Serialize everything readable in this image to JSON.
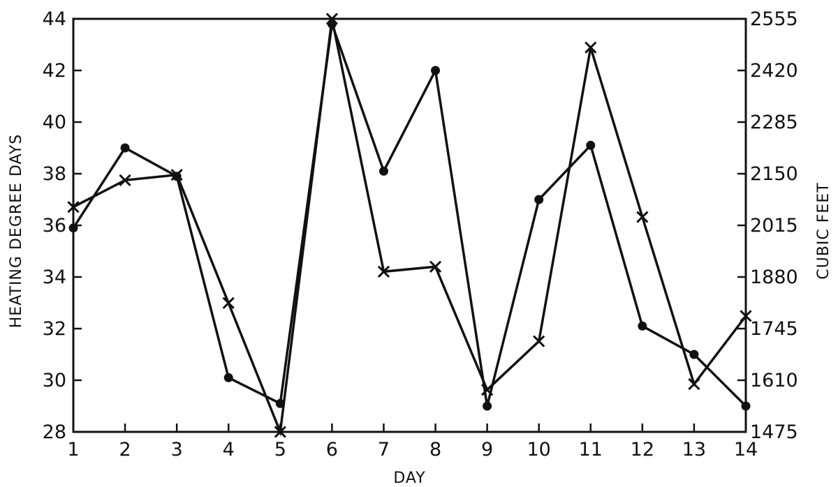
{
  "chart_data": {
    "type": "line",
    "title": "",
    "xlabel": "DAY",
    "ylabel_left": "HEATING DEGREE DAYS",
    "ylabel_right": "CUBIC FEET",
    "grid": false,
    "x": [
      1,
      2,
      3,
      4,
      5,
      6,
      7,
      8,
      9,
      10,
      11,
      12,
      13,
      14
    ],
    "x_ticks": [
      "1",
      "2",
      "3",
      "4",
      "5",
      "6",
      "7",
      "8",
      "9",
      "10",
      "11",
      "12",
      "13",
      "14"
    ],
    "left_axis": {
      "range": [
        28,
        44
      ],
      "ticks": [
        "28",
        "30",
        "32",
        "34",
        "36",
        "38",
        "40",
        "42",
        "44"
      ]
    },
    "right_axis": {
      "range": [
        1475,
        2555
      ],
      "ticks": [
        "1475",
        "1610",
        "1745",
        "1880",
        "2015",
        "2150",
        "2285",
        "2420",
        "2555"
      ]
    },
    "series": [
      {
        "marker": "dot",
        "axis": "left",
        "values": [
          35.9,
          39.0,
          37.9,
          30.1,
          29.1,
          43.8,
          38.1,
          42.0,
          29.0,
          37.0,
          39.1,
          32.1,
          31.0,
          29.0
        ]
      },
      {
        "marker": "x",
        "axis": "right",
        "values": [
          2063,
          2133,
          2147,
          1812,
          1475,
          2555,
          1894,
          1907,
          1585,
          1712,
          2480,
          2037,
          1600,
          1778
        ]
      }
    ]
  }
}
